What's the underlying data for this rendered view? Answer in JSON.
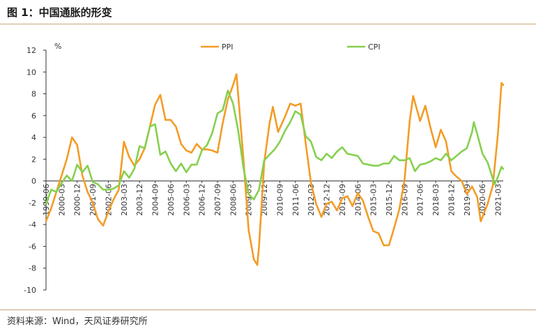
{
  "figure": {
    "title": "图 1：中国通胀的形变",
    "source": "资料来源：Wind，天风证券研究所"
  },
  "chart_data": {
    "type": "line",
    "ylabel": "%",
    "ylim": [
      -10,
      12
    ],
    "y_ticks": [
      "12",
      "10",
      "8",
      "6",
      "4",
      "2",
      "0",
      "-2",
      "-4",
      "-6",
      "-8",
      "-10"
    ],
    "x_range": [
      "1999-06",
      "2021-06"
    ],
    "x_tick_labels": [
      "1999-06",
      "2000-03",
      "2000-12",
      "2001-09",
      "2002-06",
      "2003-03",
      "2003-12",
      "2004-09",
      "2005-06",
      "2006-03",
      "2006-12",
      "2007-09",
      "2008-06",
      "2009-03",
      "2009-12",
      "2010-09",
      "2011-06",
      "2012-03",
      "2012-12",
      "2013-09",
      "2014-06",
      "2015-03",
      "2015-12",
      "2016-09",
      "2017-06",
      "2018-03",
      "2018-12",
      "2019-09",
      "2020-06",
      "2021-03"
    ],
    "legend": {
      "position": "top-center"
    },
    "grid": false,
    "series": [
      {
        "name": "PPI",
        "color": "#f39c26",
        "points": [
          [
            "1999-06",
            -3.7
          ],
          [
            "1999-09",
            -2.5
          ],
          [
            "1999-12",
            -1.0
          ],
          [
            "2000-03",
            0.5
          ],
          [
            "2000-06",
            2.0
          ],
          [
            "2000-09",
            4.0
          ],
          [
            "2000-12",
            3.3
          ],
          [
            "2001-03",
            0.5
          ],
          [
            "2001-06",
            -1.0
          ],
          [
            "2001-09",
            -2.0
          ],
          [
            "2001-12",
            -3.5
          ],
          [
            "2002-03",
            -4.1
          ],
          [
            "2002-06",
            -2.8
          ],
          [
            "2002-09",
            -1.7
          ],
          [
            "2002-12",
            -0.8
          ],
          [
            "2003-03",
            3.6
          ],
          [
            "2003-06",
            2.2
          ],
          [
            "2003-09",
            1.4
          ],
          [
            "2003-12",
            2.0
          ],
          [
            "2004-03",
            3.0
          ],
          [
            "2004-06",
            5.0
          ],
          [
            "2004-09",
            7.0
          ],
          [
            "2004-12",
            7.9
          ],
          [
            "2005-03",
            5.6
          ],
          [
            "2005-06",
            5.6
          ],
          [
            "2005-09",
            5.0
          ],
          [
            "2005-12",
            3.4
          ],
          [
            "2006-03",
            2.8
          ],
          [
            "2006-06",
            2.6
          ],
          [
            "2006-09",
            3.4
          ],
          [
            "2006-12",
            2.9
          ],
          [
            "2007-03",
            2.9
          ],
          [
            "2007-06",
            2.8
          ],
          [
            "2007-09",
            2.6
          ],
          [
            "2007-12",
            5.3
          ],
          [
            "2008-03",
            7.5
          ],
          [
            "2008-06",
            8.8
          ],
          [
            "2008-08",
            9.8
          ],
          [
            "2008-12",
            2.0
          ],
          [
            "2009-03",
            -4.5
          ],
          [
            "2009-06",
            -7.2
          ],
          [
            "2009-08",
            -7.7
          ],
          [
            "2009-09",
            -6.0
          ],
          [
            "2009-12",
            1.7
          ],
          [
            "2010-03",
            5.2
          ],
          [
            "2010-05",
            6.8
          ],
          [
            "2010-08",
            4.5
          ],
          [
            "2010-12",
            5.9
          ],
          [
            "2011-03",
            7.1
          ],
          [
            "2011-06",
            6.9
          ],
          [
            "2011-09",
            7.1
          ],
          [
            "2011-12",
            3.4
          ],
          [
            "2012-03",
            -0.2
          ],
          [
            "2012-06",
            -2.1
          ],
          [
            "2012-09",
            -3.3
          ],
          [
            "2012-12",
            -2.1
          ],
          [
            "2013-03",
            -1.9
          ],
          [
            "2013-06",
            -2.7
          ],
          [
            "2013-09",
            -1.6
          ],
          [
            "2013-12",
            -1.4
          ],
          [
            "2014-03",
            -2.3
          ],
          [
            "2014-06",
            -1.1
          ],
          [
            "2014-09",
            -1.8
          ],
          [
            "2014-12",
            -3.3
          ],
          [
            "2015-03",
            -4.6
          ],
          [
            "2015-06",
            -4.8
          ],
          [
            "2015-09",
            -5.9
          ],
          [
            "2015-12",
            -5.9
          ],
          [
            "2016-03",
            -4.3
          ],
          [
            "2016-06",
            -2.6
          ],
          [
            "2016-09",
            0.1
          ],
          [
            "2016-12",
            5.5
          ],
          [
            "2017-02",
            7.8
          ],
          [
            "2017-06",
            5.5
          ],
          [
            "2017-09",
            6.9
          ],
          [
            "2017-12",
            4.9
          ],
          [
            "2018-03",
            3.1
          ],
          [
            "2018-06",
            4.7
          ],
          [
            "2018-09",
            3.6
          ],
          [
            "2018-12",
            0.9
          ],
          [
            "2019-03",
            0.4
          ],
          [
            "2019-06",
            0.0
          ],
          [
            "2019-09",
            -1.2
          ],
          [
            "2019-12",
            -0.5
          ],
          [
            "2020-03",
            -1.5
          ],
          [
            "2020-05",
            -3.7
          ],
          [
            "2020-09",
            -2.1
          ],
          [
            "2020-12",
            -0.4
          ],
          [
            "2021-03",
            4.4
          ],
          [
            "2021-05",
            9.0
          ],
          [
            "2021-06",
            8.8
          ]
        ]
      },
      {
        "name": "CPI",
        "color": "#86d04e",
        "points": [
          [
            "1999-06",
            -2.1
          ],
          [
            "1999-09",
            -0.8
          ],
          [
            "1999-12",
            -1.0
          ],
          [
            "2000-03",
            -0.2
          ],
          [
            "2000-06",
            0.5
          ],
          [
            "2000-09",
            0.0
          ],
          [
            "2000-12",
            1.5
          ],
          [
            "2001-03",
            0.8
          ],
          [
            "2001-06",
            1.4
          ],
          [
            "2001-09",
            -0.1
          ],
          [
            "2001-12",
            -0.3
          ],
          [
            "2002-03",
            -0.8
          ],
          [
            "2002-06",
            -0.8
          ],
          [
            "2002-09",
            -0.7
          ],
          [
            "2002-12",
            -0.4
          ],
          [
            "2003-03",
            0.9
          ],
          [
            "2003-06",
            0.3
          ],
          [
            "2003-09",
            1.1
          ],
          [
            "2003-12",
            3.2
          ],
          [
            "2004-03",
            3.0
          ],
          [
            "2004-06",
            5.0
          ],
          [
            "2004-09",
            5.2
          ],
          [
            "2004-12",
            2.4
          ],
          [
            "2005-03",
            2.7
          ],
          [
            "2005-06",
            1.6
          ],
          [
            "2005-09",
            0.9
          ],
          [
            "2005-12",
            1.6
          ],
          [
            "2006-03",
            0.8
          ],
          [
            "2006-06",
            1.5
          ],
          [
            "2006-09",
            1.5
          ],
          [
            "2006-12",
            2.8
          ],
          [
            "2007-03",
            3.3
          ],
          [
            "2007-06",
            4.4
          ],
          [
            "2007-09",
            6.2
          ],
          [
            "2007-12",
            6.5
          ],
          [
            "2008-03",
            8.3
          ],
          [
            "2008-06",
            7.1
          ],
          [
            "2008-09",
            4.6
          ],
          [
            "2008-12",
            1.2
          ],
          [
            "2009-03",
            -1.2
          ],
          [
            "2009-06",
            -1.7
          ],
          [
            "2009-09",
            -0.8
          ],
          [
            "2009-12",
            1.9
          ],
          [
            "2010-03",
            2.4
          ],
          [
            "2010-06",
            2.9
          ],
          [
            "2010-09",
            3.6
          ],
          [
            "2010-12",
            4.6
          ],
          [
            "2011-03",
            5.4
          ],
          [
            "2011-06",
            6.4
          ],
          [
            "2011-09",
            6.1
          ],
          [
            "2011-12",
            4.1
          ],
          [
            "2012-03",
            3.6
          ],
          [
            "2012-06",
            2.2
          ],
          [
            "2012-09",
            1.9
          ],
          [
            "2012-12",
            2.5
          ],
          [
            "2013-03",
            2.1
          ],
          [
            "2013-06",
            2.7
          ],
          [
            "2013-09",
            3.1
          ],
          [
            "2013-12",
            2.5
          ],
          [
            "2014-03",
            2.4
          ],
          [
            "2014-06",
            2.3
          ],
          [
            "2014-09",
            1.6
          ],
          [
            "2014-12",
            1.5
          ],
          [
            "2015-03",
            1.4
          ],
          [
            "2015-06",
            1.4
          ],
          [
            "2015-09",
            1.6
          ],
          [
            "2015-12",
            1.6
          ],
          [
            "2016-03",
            2.3
          ],
          [
            "2016-06",
            1.9
          ],
          [
            "2016-09",
            1.9
          ],
          [
            "2016-12",
            2.1
          ],
          [
            "2017-03",
            0.9
          ],
          [
            "2017-06",
            1.5
          ],
          [
            "2017-09",
            1.6
          ],
          [
            "2017-12",
            1.8
          ],
          [
            "2018-03",
            2.1
          ],
          [
            "2018-06",
            1.9
          ],
          [
            "2018-09",
            2.5
          ],
          [
            "2018-12",
            1.9
          ],
          [
            "2019-03",
            2.3
          ],
          [
            "2019-06",
            2.7
          ],
          [
            "2019-09",
            3.0
          ],
          [
            "2019-12",
            4.5
          ],
          [
            "2020-01",
            5.4
          ],
          [
            "2020-03",
            4.3
          ],
          [
            "2020-06",
            2.5
          ],
          [
            "2020-09",
            1.7
          ],
          [
            "2020-12",
            0.2
          ],
          [
            "2021-01",
            -0.3
          ],
          [
            "2021-03",
            0.4
          ],
          [
            "2021-05",
            1.3
          ],
          [
            "2021-06",
            1.1
          ]
        ]
      }
    ]
  }
}
